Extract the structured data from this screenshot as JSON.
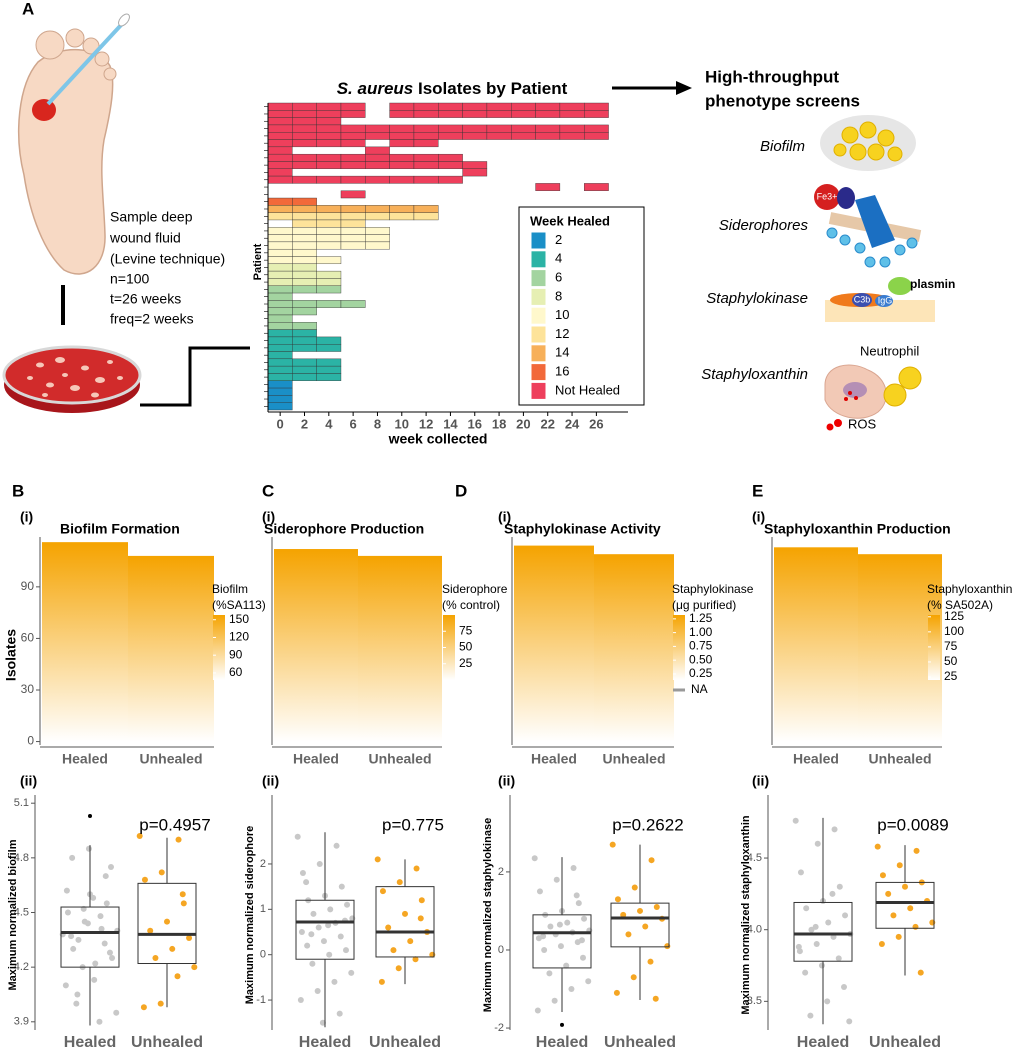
{
  "panel_labels": [
    "A",
    "B",
    "C",
    "D",
    "E"
  ],
  "sublabels": [
    "(i)",
    "(ii)"
  ],
  "sample_text": [
    "Sample deep",
    "wound fluid",
    "(Levine technique)",
    "n=100",
    "t=26 weeks",
    "freq=2 weeks"
  ],
  "screens_title": [
    "High-throughput",
    "phenotype screens"
  ],
  "screens": [
    "Biofilm",
    "Siderophores",
    "Staphylokinase",
    "Staphyloxanthin"
  ],
  "icons": {
    "fe": "Fe3+",
    "c3b": "C3b",
    "igg": "IgG",
    "plasmin": "plasmin",
    "neutrophil": "Neutrophil",
    "ros": "ROS"
  },
  "chart_data": [
    {
      "type": "timeline",
      "title_italic": "S. aureus",
      "title": "Isolates by Patient",
      "xlabel": "week collected",
      "ylabel": "Patient",
      "xlim": [
        -1,
        28.6
      ],
      "xticks": [
        0,
        2,
        4,
        6,
        8,
        10,
        12,
        14,
        16,
        18,
        20,
        22,
        24,
        26
      ],
      "legend_title": "Week Healed",
      "series": [
        {
          "name": "2",
          "color": "#1a8fc7",
          "patients": [
            [
              0
            ],
            [
              0
            ],
            [
              0
            ],
            [
              0
            ]
          ]
        },
        {
          "name": "4",
          "color": "#2bb3a5",
          "patients": [
            [
              0,
              2
            ],
            [
              0,
              2,
              4
            ],
            [
              0,
              2,
              4
            ],
            [
              0
            ],
            [
              0,
              2,
              4
            ],
            [
              0,
              2,
              4
            ],
            [
              0,
              2,
              4
            ]
          ]
        },
        {
          "name": "6",
          "color": "#a3d4a0",
          "patients": [
            [
              0,
              2,
              4
            ],
            [
              0
            ],
            [
              0,
              2,
              4,
              6
            ],
            [
              0,
              2
            ],
            [
              0
            ],
            [
              0,
              2
            ]
          ]
        },
        {
          "name": "8",
          "color": "#e6efb3",
          "patients": [
            [
              0,
              2
            ],
            [
              0,
              2,
              4
            ],
            [
              0,
              2,
              4
            ]
          ]
        },
        {
          "name": "10",
          "color": "#fff8cc",
          "patients": [
            [
              0,
              2,
              4,
              6,
              8
            ],
            [
              0,
              2,
              4,
              6,
              8
            ],
            [
              0,
              2,
              4,
              6,
              8
            ],
            [
              0,
              2
            ],
            [
              0,
              2,
              4
            ]
          ]
        },
        {
          "name": "12",
          "color": "#fde39a",
          "patients": [
            [
              0,
              2,
              4,
              6,
              8,
              10,
              12
            ],
            [
              2,
              4,
              6
            ]
          ]
        },
        {
          "name": "14",
          "color": "#f7b05a",
          "patients": [
            [
              0,
              2,
              4,
              6,
              8,
              10,
              12
            ]
          ]
        },
        {
          "name": "16",
          "color": "#f2693a",
          "patients": [
            [
              0,
              2
            ]
          ]
        },
        {
          "name": "Not Healed",
          "color": "#ee3f5c",
          "patients": [
            [
              0,
              2,
              4,
              6,
              10,
              12,
              14,
              16,
              18,
              20,
              22,
              24,
              26
            ],
            [
              0,
              2,
              4,
              6,
              10,
              12,
              14,
              16,
              18,
              20,
              22,
              24,
              26
            ],
            [
              0,
              2,
              4
            ],
            [
              0,
              2,
              4,
              6,
              8,
              10,
              12,
              14,
              16,
              18,
              20,
              22,
              24,
              26
            ],
            [
              0,
              2,
              4,
              6,
              8,
              10,
              12,
              14,
              16,
              18,
              20,
              22,
              24,
              26
            ],
            [
              0,
              2,
              4,
              6,
              10,
              12
            ],
            [
              0,
              8
            ],
            [
              0,
              2,
              4,
              6,
              8,
              10,
              12,
              14
            ],
            [
              0,
              2,
              4,
              6,
              8,
              10,
              12,
              14,
              16
            ],
            [
              0,
              16
            ],
            [
              0,
              2,
              4,
              6,
              8,
              10,
              12,
              14
            ],
            [
              22,
              26
            ],
            [
              6
            ]
          ]
        }
      ]
    },
    {
      "type": "heatmap",
      "title": "Biofilm Formation",
      "categories": [
        "Healed",
        "Unhealed"
      ],
      "values": [
        116,
        108
      ],
      "ylim": [
        -2,
        119
      ],
      "yticks": [
        0,
        30,
        60,
        90
      ],
      "ylabel": "Isolates",
      "legend_title": [
        "Biofilm",
        "(%SA113)"
      ],
      "clim": [
        48,
        158
      ],
      "cticks": [
        150,
        120,
        90,
        60
      ],
      "color": "#f5a300"
    },
    {
      "type": "heatmap",
      "title": "Siderophore Production",
      "categories": [
        "Healed",
        "Unhealed"
      ],
      "values": [
        112,
        108
      ],
      "ylim": [
        -2,
        119
      ],
      "legend_title": [
        "Siderophore",
        "(% control)"
      ],
      "clim": [
        0,
        100
      ],
      "cticks": [
        75,
        50,
        25
      ],
      "color": "#f5a300"
    },
    {
      "type": "heatmap",
      "title": "Staphylokinase Activity",
      "categories": [
        "Healed",
        "Unhealed"
      ],
      "values": [
        114,
        109
      ],
      "ylim": [
        -2,
        119
      ],
      "legend_title": [
        "Staphylokinase",
        "(μg purified)"
      ],
      "clim": [
        0.14,
        1.32
      ],
      "cticks": [
        1.25,
        {
          "value": 1,
          "label": "1.00"
        },
        0.75,
        {
          "value": 0.5,
          "label": "0.50"
        },
        0.25
      ],
      "na_label": "NA",
      "color": "#f5a300"
    },
    {
      "type": "heatmap",
      "title": "Staphyloxanthin Production",
      "categories": [
        "Healed",
        "Unhealed"
      ],
      "values": [
        113,
        109
      ],
      "ylim": [
        -2,
        119
      ],
      "legend_title": [
        "Staphyloxanthin",
        "(% SA502A)"
      ],
      "clim": [
        20,
        128
      ],
      "cticks": [
        125,
        100,
        75,
        50,
        25
      ],
      "color": "#f5a300"
    },
    {
      "type": "box",
      "ylabel": "Maximum normalized biofilm",
      "categories": [
        "Healed",
        "Unhealed"
      ],
      "p_value": "p=0.4957",
      "ylim": [
        3.855,
        5.145
      ],
      "yticks": [
        3.9,
        4.2,
        4.5,
        4.8,
        5.1
      ],
      "colors": [
        "#c8c8c8",
        "#f5a623"
      ],
      "boxes": [
        {
          "min": 3.88,
          "q1": 4.2,
          "median": 4.39,
          "q3": 4.53,
          "max": 4.87
        },
        {
          "min": 3.98,
          "q1": 4.22,
          "median": 4.38,
          "q3": 4.66,
          "max": 4.91
        }
      ],
      "points": [
        [
          4.38,
          4.41,
          4.45,
          4.5,
          4.55,
          4.6,
          4.3,
          4.25,
          4.22,
          4.35,
          4.4,
          4.48,
          4.52,
          4.62,
          4.7,
          4.85,
          4.8,
          4.75,
          4.13,
          4.05,
          3.95,
          3.9,
          4.2,
          4.1,
          4.33,
          4.44,
          4.37,
          4.28,
          4.58,
          4.0
        ],
        [
          4.92,
          4.9,
          4.72,
          4.68,
          4.55,
          4.45,
          4.4,
          4.36,
          4.3,
          4.25,
          4.2,
          4.15,
          4.0,
          3.98,
          4.6
        ]
      ],
      "outliers": [
        [
          5.03
        ],
        []
      ]
    },
    {
      "type": "box",
      "ylabel": "Maximum normalized siderophore",
      "categories": [
        "Healed",
        "Unhealed"
      ],
      "p_value": "p=0.775",
      "ylim": [
        -1.66,
        3.52
      ],
      "yticks": [
        -1,
        0,
        1,
        2
      ],
      "colors": [
        "#c8c8c8",
        "#f5a623"
      ],
      "boxes": [
        {
          "min": -1.6,
          "q1": -0.1,
          "median": 0.72,
          "q3": 1.2,
          "max": 2.7
        },
        {
          "min": -0.65,
          "q1": -0.05,
          "median": 0.5,
          "q3": 1.5,
          "max": 2.1
        }
      ],
      "points": [
        [
          2.6,
          2.4,
          2,
          1.8,
          1.5,
          1.3,
          1.2,
          1.1,
          1,
          0.9,
          0.8,
          0.7,
          0.6,
          0.5,
          0.4,
          0.3,
          0.2,
          0.1,
          0,
          -0.2,
          -0.4,
          -0.6,
          -0.8,
          -1,
          -1.3,
          -1.5,
          1.6,
          0.75,
          0.65,
          0.45
        ],
        [
          2.1,
          1.9,
          1.6,
          1.4,
          1.2,
          0.9,
          0.6,
          0.5,
          0.3,
          0.1,
          0,
          -0.1,
          -0.3,
          -0.6,
          0.8
        ]
      ],
      "outliers": [
        [],
        []
      ]
    },
    {
      "type": "box",
      "ylabel": "Maximum normalized staphylokinase",
      "categories": [
        "Healed",
        "Unhealed"
      ],
      "p_value": "p=0.2622",
      "ylim": [
        -2.05,
        3.97
      ],
      "yticks": [
        -2,
        0,
        2
      ],
      "colors": [
        "#c8c8c8",
        "#f5a623"
      ],
      "boxes": [
        {
          "min": -1.59,
          "q1": -0.46,
          "median": 0.44,
          "q3": 0.9,
          "max": 2.38
        },
        {
          "min": -1.28,
          "q1": 0.08,
          "median": 0.82,
          "q3": 1.2,
          "max": 2.7
        }
      ],
      "points": [
        [
          2.35,
          2.1,
          1.8,
          1.5,
          1.2,
          1,
          0.9,
          0.8,
          0.7,
          0.6,
          0.5,
          0.45,
          0.4,
          0.3,
          0.2,
          0.1,
          0,
          -0.2,
          -0.4,
          -0.6,
          -0.8,
          -1,
          -1.3,
          -1.55,
          1.4,
          0.65,
          0.35,
          0.25
        ],
        [
          2.7,
          2.3,
          1.6,
          1.3,
          1.1,
          1,
          0.9,
          0.8,
          0.6,
          0.4,
          0.1,
          -0.3,
          -0.7,
          -1.1,
          -1.25
        ]
      ],
      "outliers": [
        [
          -1.92
        ],
        []
      ]
    },
    {
      "type": "box",
      "ylabel": "Maximum normalized staphyloxanthin",
      "categories": [
        "Healed",
        "Unhealed"
      ],
      "p_value": "p=0.0089",
      "ylim": [
        3.3,
        4.94
      ],
      "yticks": [
        3.5,
        {
          "value": 4,
          "label": "4.0"
        },
        4.5
      ],
      "colors": [
        "#c8c8c8",
        "#f5a623"
      ],
      "boxes": [
        {
          "min": 3.34,
          "q1": 3.78,
          "median": 3.97,
          "q3": 4.19,
          "max": 4.78
        },
        {
          "min": 3.68,
          "q1": 4.01,
          "median": 4.19,
          "q3": 4.33,
          "max": 4.59
        }
      ],
      "points": [
        [
          4.76,
          4.7,
          4.6,
          4.4,
          4.3,
          4.2,
          4.15,
          4.1,
          4.05,
          4,
          3.97,
          3.95,
          3.9,
          3.85,
          3.8,
          3.75,
          3.7,
          3.6,
          3.5,
          3.4,
          3.36,
          4.25,
          4.02,
          3.88
        ],
        [
          4.58,
          4.55,
          4.45,
          4.38,
          4.33,
          4.3,
          4.25,
          4.2,
          4.15,
          4.1,
          4.05,
          4.02,
          3.95,
          3.9,
          3.7
        ]
      ],
      "outliers": [
        [],
        []
      ]
    }
  ]
}
